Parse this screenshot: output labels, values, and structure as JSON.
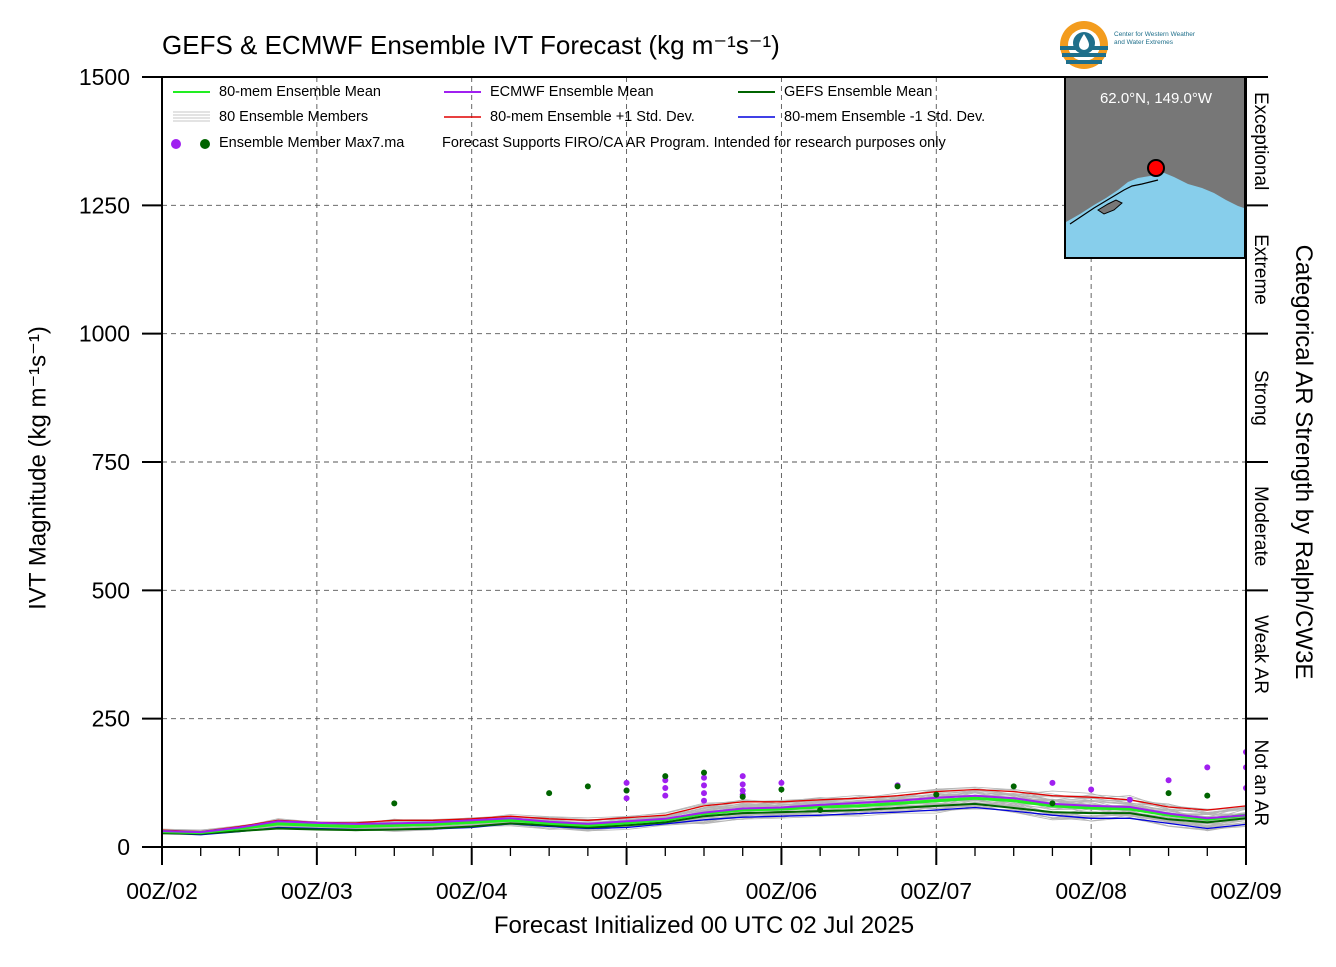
{
  "title": "GEFS & ECMWF Ensemble IVT Forecast (kg m⁻¹s⁻¹)",
  "ylabel": "IVT Magnitude (kg m⁻¹s⁻¹)",
  "xlabel": "Forecast Initialized 00 UTC 02 Jul 2025",
  "right_label": "Categorical AR Strength by Ralph/CW3E",
  "logo": {
    "line1": "Center for Western Weather",
    "line2": "and Water Extremes"
  },
  "map": {
    "location": "62.0°N, 149.0°W"
  },
  "legend": [
    {
      "label": "80-mem Ensemble Mean",
      "color": "#22ee22"
    },
    {
      "label": "ECMWF Ensemble Mean",
      "color": "#a020f0"
    },
    {
      "label": "GEFS Ensemble Mean",
      "color": "#006400"
    },
    {
      "label": "80 Ensemble Members",
      "color": "#aaaaaa"
    },
    {
      "label": "80-mem Ensemble +1 Std. Dev.",
      "color": "#e00000"
    },
    {
      "label": "80-mem Ensemble -1 Std. Dev.",
      "color": "#0000dd"
    },
    {
      "label": "Ensemble Member Max7.ma",
      "color": "#a020f0"
    }
  ],
  "note": "Forecast Supports FIRO/CA AR Program. Intended for research purposes only",
  "chart_data": {
    "type": "line",
    "title": "GEFS & ECMWF Ensemble IVT Forecast (kg m⁻¹s⁻¹)",
    "xlabel": "Forecast Initialized 00 UTC 02 Jul 2025",
    "ylabel": "IVT Magnitude (kg m⁻¹s⁻¹)",
    "xlim": [
      "00Z/02",
      "00Z/09"
    ],
    "xticks": [
      "00Z/02",
      "00Z/03",
      "00Z/04",
      "00Z/05",
      "00Z/06",
      "00Z/07",
      "00Z/08",
      "00Z/09"
    ],
    "x_step_hours": 6,
    "ylim": [
      0,
      1500
    ],
    "yticks": [
      0,
      250,
      500,
      750,
      1000,
      1250,
      1500
    ],
    "grid": true,
    "legend_position": "top-left",
    "categories_right_axis": [
      {
        "label": "Not an AR",
        "range": [
          0,
          250
        ]
      },
      {
        "label": "Weak AR",
        "range": [
          250,
          500
        ]
      },
      {
        "label": "Moderate",
        "range": [
          500,
          750
        ]
      },
      {
        "label": "Strong",
        "range": [
          750,
          1000
        ]
      },
      {
        "label": "Extreme",
        "range": [
          1000,
          1250
        ]
      },
      {
        "label": "Exceptional",
        "range": [
          1250,
          1500
        ]
      }
    ],
    "series": [
      {
        "name": "80-mem Ensemble +1 Std. Dev.",
        "color": "#e00000",
        "values": [
          33,
          30,
          40,
          52,
          48,
          47,
          52,
          52,
          55,
          60,
          55,
          52,
          57,
          62,
          80,
          88,
          88,
          92,
          95,
          100,
          108,
          112,
          108,
          100,
          97,
          92,
          78,
          72,
          80,
          78,
          80,
          80,
          82,
          75,
          78,
          80,
          82,
          85,
          85,
          83,
          77,
          78,
          80,
          85,
          88,
          92
        ]
      },
      {
        "name": "80-mem Ensemble Mean",
        "color": "#22ee22",
        "values": [
          30,
          28,
          36,
          45,
          42,
          40,
          42,
          44,
          48,
          52,
          46,
          42,
          47,
          53,
          65,
          72,
          74,
          78,
          80,
          85,
          90,
          95,
          90,
          80,
          76,
          74,
          62,
          54,
          62,
          60,
          62,
          58,
          62,
          56,
          58,
          60,
          62,
          64,
          64,
          62,
          58,
          58,
          59,
          60,
          62,
          64
        ]
      },
      {
        "name": "ECMWF Ensemble Mean",
        "color": "#a020f0",
        "values": [
          31,
          29,
          38,
          50,
          47,
          45,
          46,
          48,
          52,
          56,
          49,
          45,
          50,
          55,
          67,
          75,
          77,
          82,
          86,
          90,
          96,
          100,
          95,
          84,
          80,
          78,
          65,
          56,
          62,
          62,
          64,
          60,
          62,
          58,
          60,
          62,
          62,
          62,
          62,
          60,
          57,
          56,
          57,
          58,
          58,
          60
        ]
      },
      {
        "name": "GEFS Ensemble Mean",
        "color": "#006400",
        "values": [
          27,
          26,
          31,
          36,
          34,
          33,
          34,
          36,
          40,
          46,
          42,
          38,
          42,
          48,
          60,
          66,
          68,
          70,
          72,
          76,
          80,
          84,
          76,
          68,
          66,
          66,
          54,
          48,
          56,
          54,
          56,
          54,
          58,
          52,
          54,
          55,
          56,
          58,
          58,
          56,
          52,
          54,
          54,
          56,
          58,
          62
        ]
      },
      {
        "name": "80-mem Ensemble -1 Std. Dev.",
        "color": "#0000dd",
        "values": [
          27,
          24,
          30,
          38,
          36,
          34,
          34,
          35,
          38,
          45,
          40,
          36,
          38,
          45,
          53,
          58,
          60,
          62,
          65,
          68,
          72,
          77,
          70,
          62,
          56,
          56,
          46,
          36,
          44,
          42,
          44,
          40,
          44,
          38,
          38,
          40,
          42,
          42,
          42,
          40,
          35,
          36,
          36,
          34,
          32,
          30
        ]
      }
    ],
    "member_maxima": {
      "ECMWF": [
        {
          "x": "00Z/05",
          "y": 125
        },
        {
          "x": "00Z/05",
          "y": 110
        },
        {
          "x": "00Z/05",
          "y": 95
        },
        {
          "x": "06Z/05",
          "y": 130
        },
        {
          "x": "06Z/05",
          "y": 115
        },
        {
          "x": "06Z/05",
          "y": 100
        },
        {
          "x": "12Z/05",
          "y": 135
        },
        {
          "x": "12Z/05",
          "y": 120
        },
        {
          "x": "12Z/05",
          "y": 105
        },
        {
          "x": "18Z/05",
          "y": 138
        },
        {
          "x": "18Z/05",
          "y": 122
        },
        {
          "x": "18Z/05",
          "y": 110
        },
        {
          "x": "00Z/06",
          "y": 125
        },
        {
          "x": "18Z/06",
          "y": 120
        },
        {
          "x": "18Z/05",
          "y": 102
        },
        {
          "x": "12Z/05",
          "y": 90
        },
        {
          "x": "06Z/08",
          "y": 92
        },
        {
          "x": "12Z/08",
          "y": 130
        },
        {
          "x": "18Z/08",
          "y": 155
        },
        {
          "x": "00Z/09",
          "y": 185
        },
        {
          "x": "00Z/09",
          "y": 155
        },
        {
          "x": "00Z/09",
          "y": 115
        },
        {
          "x": "18Z/07",
          "y": 125
        },
        {
          "x": "00Z/08",
          "y": 112
        }
      ],
      "GEFS": [
        {
          "x": "12Z/03",
          "y": 85
        },
        {
          "x": "12Z/04",
          "y": 105
        },
        {
          "x": "18Z/04",
          "y": 118
        },
        {
          "x": "00Z/05",
          "y": 110
        },
        {
          "x": "06Z/05",
          "y": 138
        },
        {
          "x": "12Z/05",
          "y": 145
        },
        {
          "x": "18Z/05",
          "y": 98
        },
        {
          "x": "00Z/06",
          "y": 112
        },
        {
          "x": "06Z/06",
          "y": 72
        },
        {
          "x": "18Z/06",
          "y": 118
        },
        {
          "x": "00Z/07",
          "y": 102
        },
        {
          "x": "12Z/07",
          "y": 118
        },
        {
          "x": "18Z/07",
          "y": 85
        },
        {
          "x": "12Z/08",
          "y": 105
        },
        {
          "x": "18Z/08",
          "y": 100
        }
      ]
    }
  }
}
